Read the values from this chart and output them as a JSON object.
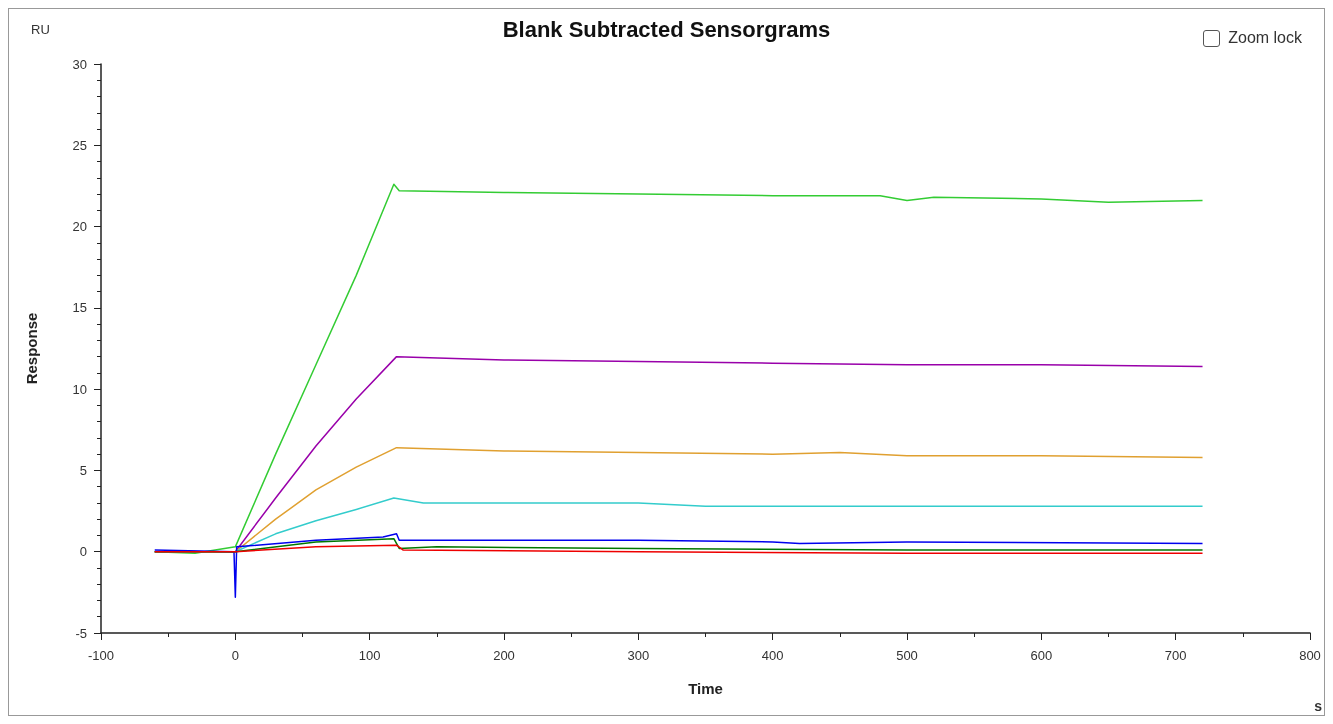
{
  "chart_data": {
    "type": "line",
    "title": "Blank Subtracted Sensorgrams",
    "xlabel": "Time",
    "ylabel": "Response",
    "annotations": [
      "RU",
      "s",
      "Zoom lock"
    ],
    "xlim": [
      -100,
      800
    ],
    "xticks": [
      -100,
      0,
      100,
      200,
      300,
      400,
      500,
      600,
      700,
      800
    ],
    "ylim": [
      -5,
      30
    ],
    "yticks": [
      -5,
      0,
      5,
      10,
      15,
      20,
      25,
      30
    ],
    "grid": false,
    "marker": "none",
    "line_style": "solid",
    "series": [
      {
        "color": "#33cc33",
        "x": [
          -60,
          -30,
          0,
          30,
          60,
          90,
          118,
          122,
          200,
          300,
          400,
          480,
          500,
          520,
          600,
          650,
          720
        ],
        "values": [
          0,
          -0.1,
          0.3,
          6.0,
          11.5,
          17.0,
          22.6,
          22.2,
          22.1,
          22.0,
          21.9,
          21.9,
          21.6,
          21.8,
          21.7,
          21.5,
          21.6
        ]
      },
      {
        "color": "#9900aa",
        "x": [
          -60,
          0,
          30,
          60,
          90,
          120,
          200,
          300,
          400,
          500,
          600,
          720
        ],
        "values": [
          0,
          0,
          3.3,
          6.5,
          9.4,
          12.0,
          11.8,
          11.7,
          11.6,
          11.5,
          11.5,
          11.4
        ]
      },
      {
        "color": "#e0a030",
        "x": [
          -60,
          0,
          30,
          60,
          90,
          120,
          200,
          300,
          400,
          450,
          500,
          600,
          720
        ],
        "values": [
          0,
          0,
          2.0,
          3.8,
          5.2,
          6.4,
          6.2,
          6.1,
          6.0,
          6.1,
          5.9,
          5.9,
          5.8
        ]
      },
      {
        "color": "#33cccc",
        "x": [
          -60,
          0,
          30,
          60,
          90,
          118,
          140,
          300,
          350,
          400,
          720
        ],
        "values": [
          0,
          0,
          1.1,
          1.9,
          2.6,
          3.3,
          3.0,
          3.0,
          2.8,
          2.8,
          2.8
        ]
      },
      {
        "color": "#0000ee",
        "x": [
          -60,
          -1,
          0,
          1,
          60,
          110,
          120,
          122,
          300,
          400,
          420,
          500,
          720
        ],
        "values": [
          0.1,
          0,
          -2.8,
          0.3,
          0.7,
          0.9,
          1.1,
          0.7,
          0.7,
          0.6,
          0.5,
          0.6,
          0.5
        ]
      },
      {
        "color": "#007700",
        "x": [
          -60,
          0,
          60,
          118,
          122,
          150,
          300,
          500,
          720
        ],
        "values": [
          0,
          0,
          0.6,
          0.8,
          0.2,
          0.3,
          0.2,
          0.1,
          0.1
        ]
      },
      {
        "color": "#ee0000",
        "x": [
          -60,
          0,
          60,
          120,
          125,
          300,
          500,
          720
        ],
        "values": [
          0,
          0,
          0.3,
          0.4,
          0.1,
          0,
          -0.1,
          -0.1
        ]
      }
    ]
  }
}
